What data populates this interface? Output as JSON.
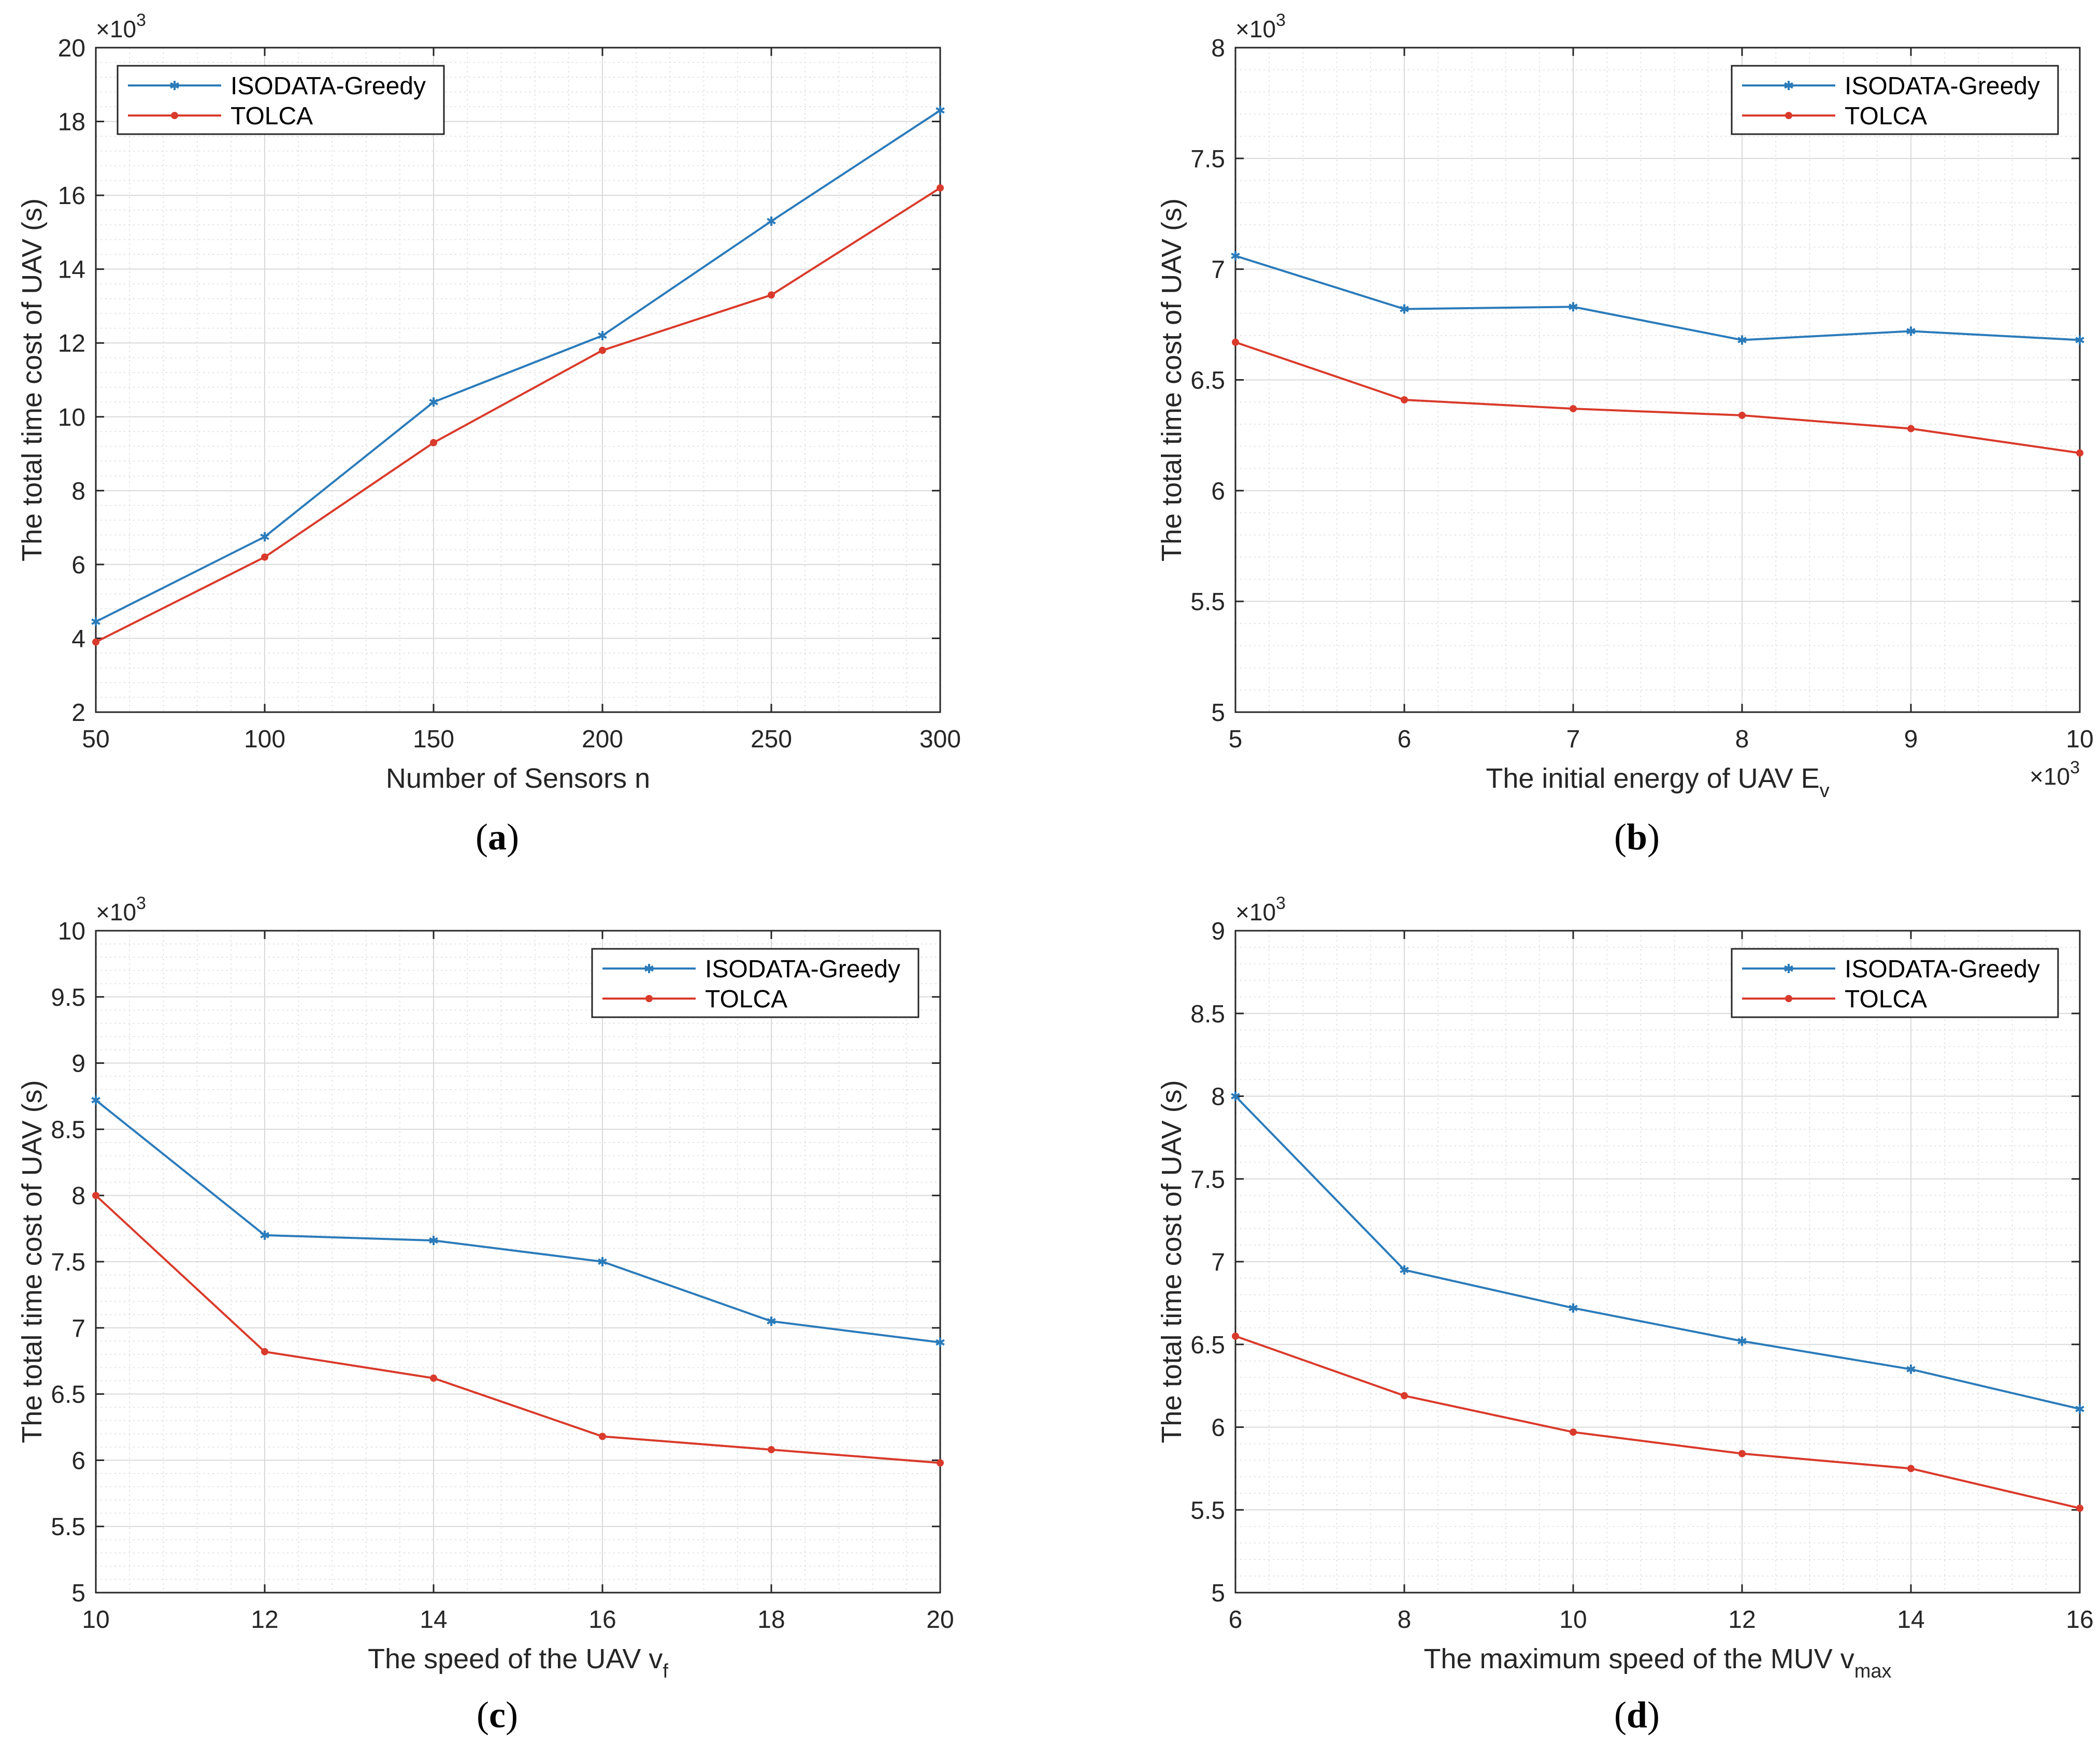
{
  "chart_data": [
    {
      "type": "line",
      "caption": "a",
      "x": [
        50,
        100,
        150,
        200,
        250,
        300
      ],
      "xticks": [
        50,
        100,
        150,
        200,
        250,
        300
      ],
      "xtick_labels": [
        "50",
        "100",
        "150",
        "200",
        "250",
        "300"
      ],
      "xlim": [
        50,
        300
      ],
      "yticks": [
        2,
        4,
        6,
        8,
        10,
        12,
        14,
        16,
        18,
        20
      ],
      "ytick_labels": [
        "2",
        "4",
        "6",
        "8",
        "10",
        "12",
        "14",
        "16",
        "18",
        "20"
      ],
      "ylim": [
        2,
        20
      ],
      "xlabel": "Number of Sensors n",
      "xlabel_sub": "",
      "ylabel": "The total time cost of UAV (s)",
      "y_exponent": "×10",
      "y_exponent_sup": "3",
      "x_exponent": "",
      "x_exponent_sup": "",
      "grid": true,
      "legend_position": "top-left",
      "series": [
        {
          "name": "ISODATA-Greedy",
          "color": "#2b7bba",
          "marker": "star",
          "values": [
            4.45,
            6.75,
            10.4,
            12.2,
            15.3,
            18.3
          ]
        },
        {
          "name": "TOLCA",
          "color": "#d93a2b",
          "marker": "dot",
          "values": [
            3.9,
            6.2,
            9.3,
            11.8,
            13.3,
            16.2
          ]
        }
      ]
    },
    {
      "type": "line",
      "caption": "b",
      "x": [
        5,
        6,
        7,
        8,
        9,
        10
      ],
      "xticks": [
        5,
        6,
        7,
        8,
        9,
        10
      ],
      "xtick_labels": [
        "5",
        "6",
        "7",
        "8",
        "9",
        "10"
      ],
      "xlim": [
        5,
        10
      ],
      "yticks": [
        5,
        5.5,
        6,
        6.5,
        7,
        7.5,
        8
      ],
      "ytick_labels": [
        "5",
        "5.5",
        "6",
        "6.5",
        "7",
        "7.5",
        "8"
      ],
      "ylim": [
        5,
        8
      ],
      "xlabel": "The initial energy of UAV E",
      "xlabel_sub": "v",
      "ylabel": "The total time cost of UAV (s)",
      "y_exponent": "×10",
      "y_exponent_sup": "3",
      "x_exponent": "×10",
      "x_exponent_sup": "3",
      "grid": true,
      "legend_position": "top-right",
      "series": [
        {
          "name": "ISODATA-Greedy",
          "color": "#2b7bba",
          "marker": "star",
          "values": [
            7.06,
            6.82,
            6.83,
            6.68,
            6.72,
            6.68
          ]
        },
        {
          "name": "TOLCA",
          "color": "#d93a2b",
          "marker": "dot",
          "values": [
            6.67,
            6.41,
            6.37,
            6.34,
            6.28,
            6.17
          ]
        }
      ]
    },
    {
      "type": "line",
      "caption": "c",
      "x": [
        10,
        12,
        14,
        16,
        18,
        20
      ],
      "xticks": [
        10,
        12,
        14,
        16,
        18,
        20
      ],
      "xtick_labels": [
        "10",
        "12",
        "14",
        "16",
        "18",
        "20"
      ],
      "xlim": [
        10,
        20
      ],
      "yticks": [
        5,
        5.5,
        6,
        6.5,
        7,
        7.5,
        8,
        8.5,
        9,
        9.5,
        10
      ],
      "ytick_labels": [
        "5",
        "5.5",
        "6",
        "6.5",
        "7",
        "7.5",
        "8",
        "8.5",
        "9",
        "9.5",
        "10"
      ],
      "ylim": [
        5,
        10
      ],
      "xlabel": "The speed of the UAV v",
      "xlabel_sub": "f",
      "ylabel": "The total time cost of UAV (s)",
      "y_exponent": "×10",
      "y_exponent_sup": "3",
      "x_exponent": "",
      "x_exponent_sup": "",
      "grid": true,
      "legend_position": "top-right",
      "series": [
        {
          "name": "ISODATA-Greedy",
          "color": "#2b7bba",
          "marker": "star",
          "values": [
            8.72,
            7.7,
            7.66,
            7.5,
            7.05,
            6.89
          ]
        },
        {
          "name": "TOLCA",
          "color": "#d93a2b",
          "marker": "dot",
          "values": [
            8.0,
            6.82,
            6.62,
            6.18,
            6.08,
            5.98
          ]
        }
      ]
    },
    {
      "type": "line",
      "caption": "d",
      "x": [
        6,
        8,
        10,
        12,
        14,
        16
      ],
      "xticks": [
        6,
        8,
        10,
        12,
        14,
        16
      ],
      "xtick_labels": [
        "6",
        "8",
        "10",
        "12",
        "14",
        "16"
      ],
      "xlim": [
        6,
        16
      ],
      "yticks": [
        5,
        5.5,
        6,
        6.5,
        7,
        7.5,
        8,
        8.5,
        9
      ],
      "ytick_labels": [
        "5",
        "5.5",
        "6",
        "6.5",
        "7",
        "7.5",
        "8",
        "8.5",
        "9"
      ],
      "ylim": [
        5,
        9
      ],
      "xlabel": "The maximum speed of the MUV v",
      "xlabel_sub": "max",
      "ylabel": "The total time cost of UAV (s)",
      "y_exponent": "×10",
      "y_exponent_sup": "3",
      "x_exponent": "",
      "x_exponent_sup": "",
      "grid": true,
      "legend_position": "top-right",
      "series": [
        {
          "name": "ISODATA-Greedy",
          "color": "#2b7bba",
          "marker": "star",
          "values": [
            8.0,
            6.95,
            6.72,
            6.52,
            6.35,
            6.11
          ]
        },
        {
          "name": "TOLCA",
          "color": "#d93a2b",
          "marker": "dot",
          "values": [
            6.55,
            6.19,
            5.97,
            5.84,
            5.75,
            5.51
          ]
        }
      ]
    }
  ]
}
